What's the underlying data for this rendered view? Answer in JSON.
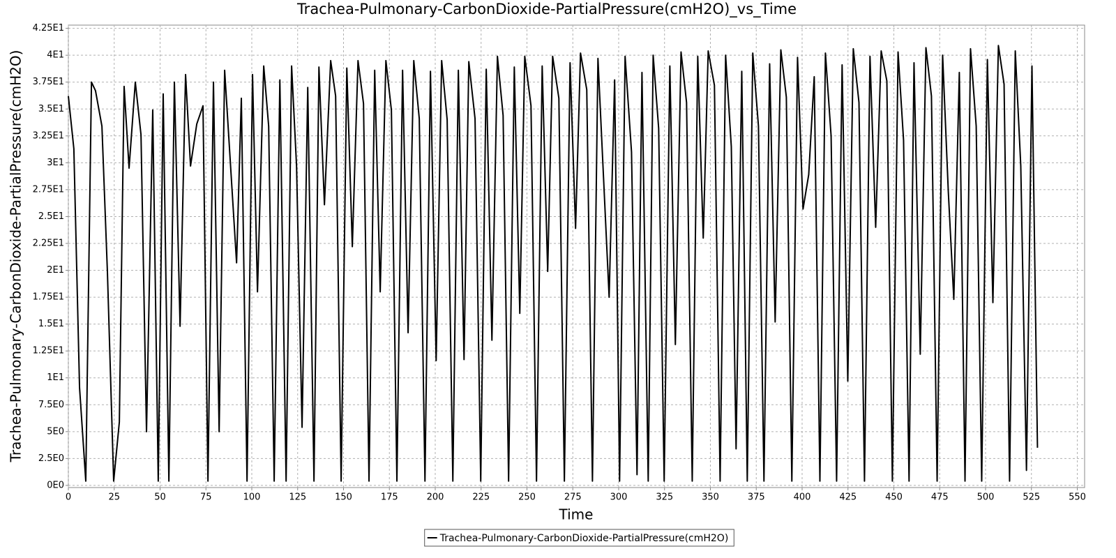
{
  "chart_data": {
    "type": "line",
    "title": "Trachea-Pulmonary-CarbonDioxide-PartialPressure(cmH2O)_vs_Time",
    "x_label": "Time",
    "y_label": "Trachea-Pulmonary-CarbonDioxide-PartialPressure(cmH2O)",
    "grid": true,
    "legend": "bottom",
    "xlim": [
      0,
      554
    ],
    "ylim": [
      -0.2,
      42.8
    ],
    "xticks": [
      0,
      25,
      50,
      75,
      100,
      125,
      150,
      175,
      200,
      225,
      250,
      275,
      300,
      325,
      350,
      375,
      400,
      425,
      450,
      475,
      500,
      525,
      550
    ],
    "yticks": [
      {
        "value": 0,
        "label": "0E0"
      },
      {
        "value": 2.5,
        "label": "2.5E0"
      },
      {
        "value": 5,
        "label": "5E0"
      },
      {
        "value": 7.5,
        "label": "7.5E0"
      },
      {
        "value": 10,
        "label": "1E1"
      },
      {
        "value": 12.5,
        "label": "1.25E1"
      },
      {
        "value": 15,
        "label": "1.5E1"
      },
      {
        "value": 17.5,
        "label": "1.75E1"
      },
      {
        "value": 20,
        "label": "2E1"
      },
      {
        "value": 22.5,
        "label": "2.25E1"
      },
      {
        "value": 25,
        "label": "2.5E1"
      },
      {
        "value": 27.5,
        "label": "2.75E1"
      },
      {
        "value": 30,
        "label": "3E1"
      },
      {
        "value": 32.5,
        "label": "3.25E1"
      },
      {
        "value": 35,
        "label": "3.5E1"
      },
      {
        "value": 37.5,
        "label": "3.75E1"
      },
      {
        "value": 40,
        "label": "4E1"
      },
      {
        "value": 42.5,
        "label": "4.25E1"
      }
    ],
    "x": [
      0,
      3.0,
      6.1,
      9.5,
      12.6,
      14.8,
      18.3,
      21.3,
      24.7,
      27.8,
      30.4,
      33.1,
      36.5,
      39.6,
      42.6,
      46.0,
      49.0,
      51.7,
      54.8,
      57.8,
      60.9,
      63.9,
      66.6,
      70.0,
      73.4,
      76.1,
      79.1,
      82.2,
      85.2,
      91.7,
      94.3,
      97.4,
      100.4,
      103.1,
      106.5,
      109.2,
      112.2,
      115.3,
      118.7,
      121.7,
      124.4,
      127.4,
      130.5,
      133.9,
      136.6,
      139.6,
      143.0,
      145.7,
      148.7,
      151.8,
      154.8,
      157.9,
      160.9,
      163.9,
      167.0,
      170.0,
      173.1,
      176.1,
      179.1,
      182.2,
      185.2,
      188.3,
      191.3,
      194.4,
      197.4,
      200.5,
      203.5,
      206.5,
      209.6,
      212.6,
      215.7,
      218.3,
      221.7,
      224.8,
      227.8,
      230.9,
      233.9,
      237.0,
      240.0,
      243.1,
      246.1,
      248.8,
      252.2,
      255.2,
      258.3,
      261.3,
      264.0,
      267.4,
      270.4,
      273.5,
      276.5,
      279.2,
      282.6,
      285.7,
      288.7,
      294.8,
      297.8,
      300.5,
      303.5,
      307.0,
      310.0,
      312.7,
      316.1,
      318.8,
      321.8,
      324.8,
      327.9,
      330.9,
      334.0,
      337.0,
      340.1,
      343.1,
      346.1,
      348.8,
      352.2,
      355.3,
      358.3,
      361.4,
      364.0,
      367.1,
      370.1,
      373.1,
      376.2,
      379.2,
      382.3,
      385.3,
      388.4,
      391.4,
      394.4,
      397.5,
      400.5,
      403.6,
      406.6,
      409.7,
      412.7,
      415.8,
      418.8,
      421.8,
      424.9,
      427.9,
      431.0,
      434.0,
      437.0,
      440.1,
      443.1,
      446.2,
      449.2,
      452.3,
      455.3,
      458.3,
      461.0,
      464.4,
      467.5,
      470.5,
      473.6,
      476.6,
      479.7,
      482.7,
      485.7,
      488.8,
      491.8,
      494.9,
      497.9,
      501.0,
      504.0,
      507.0,
      510.1,
      513.1,
      516.2,
      519.2,
      522.3,
      525.3,
      528.3
    ],
    "series": [
      {
        "name": "Trachea-Pulmonary-CarbonDioxide-PartialPressure(cmH2O)",
        "color": "#000000",
        "values": [
          36.2,
          31.3,
          9.1,
          0.4,
          37.5,
          36.7,
          33.4,
          19.8,
          0.4,
          5.9,
          37.1,
          29.5,
          37.5,
          32.6,
          5.0,
          34.9,
          0.4,
          36.4,
          0.4,
          37.5,
          14.8,
          38.2,
          29.7,
          33.6,
          35.3,
          0.4,
          37.5,
          5.0,
          38.6,
          20.7,
          36.0,
          0.4,
          38.2,
          18.0,
          39.0,
          33.4,
          0.4,
          37.7,
          0.4,
          39.0,
          29.7,
          5.4,
          37.0,
          0.4,
          38.9,
          26.1,
          39.5,
          36.2,
          0.4,
          38.8,
          22.2,
          39.5,
          35.5,
          0.4,
          38.6,
          18.0,
          39.5,
          34.9,
          0.4,
          38.6,
          14.2,
          39.5,
          34.1,
          0.4,
          38.5,
          11.6,
          39.5,
          34.0,
          0.4,
          38.6,
          11.7,
          39.4,
          34.1,
          0.4,
          38.7,
          13.5,
          39.9,
          34.4,
          0.4,
          38.9,
          16.0,
          39.9,
          35.3,
          0.4,
          39.0,
          19.9,
          39.9,
          36.0,
          0.4,
          39.3,
          23.9,
          40.2,
          36.8,
          0.4,
          39.7,
          17.5,
          37.7,
          0.4,
          39.9,
          31.0,
          1.0,
          38.4,
          0.4,
          40.0,
          33.2,
          0.4,
          39.0,
          13.1,
          40.3,
          35.6,
          0.4,
          39.9,
          23.0,
          40.4,
          37.2,
          0.4,
          40.0,
          31.5,
          3.4,
          38.5,
          0.4,
          40.2,
          33.4,
          0.4,
          39.2,
          15.2,
          40.5,
          36.1,
          0.4,
          39.8,
          25.7,
          28.9,
          38.0,
          0.4,
          40.2,
          32.5,
          0.4,
          39.1,
          9.7,
          40.6,
          35.6,
          0.4,
          39.9,
          24.0,
          40.4,
          37.6,
          0.4,
          40.3,
          32.1,
          0.4,
          39.3,
          12.2,
          40.7,
          36.2,
          0.4,
          40.0,
          27.3,
          17.3,
          38.4,
          0.4,
          40.6,
          33.4,
          0.4,
          39.6,
          17.0,
          40.9,
          37.3,
          0.4,
          40.4,
          29.7,
          1.4,
          39.0,
          3.5
        ]
      }
    ]
  }
}
